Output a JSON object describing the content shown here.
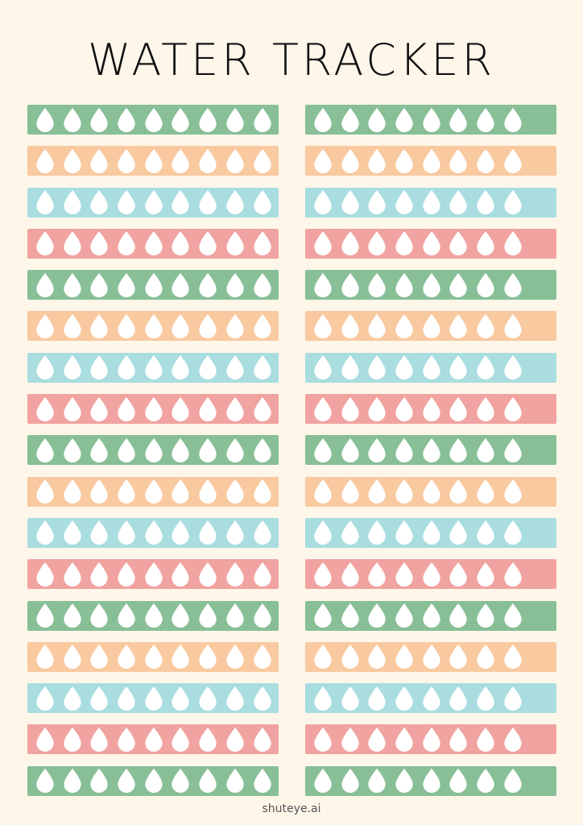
{
  "title": "WATER TRACKER",
  "footer": "shuteye.ai",
  "icon": "water-drop-icon",
  "colors": {
    "background": "#fdf6e9",
    "green": "#88bf97",
    "orange": "#f9c9a0",
    "blue": "#a9dde0",
    "pink": "#f0a3a0",
    "drop": "#ffffff"
  },
  "color_cycle": [
    "green",
    "orange",
    "blue",
    "pink"
  ],
  "rows_per_column": 17,
  "left_column_drops": 9,
  "right_column_drops": 8
}
